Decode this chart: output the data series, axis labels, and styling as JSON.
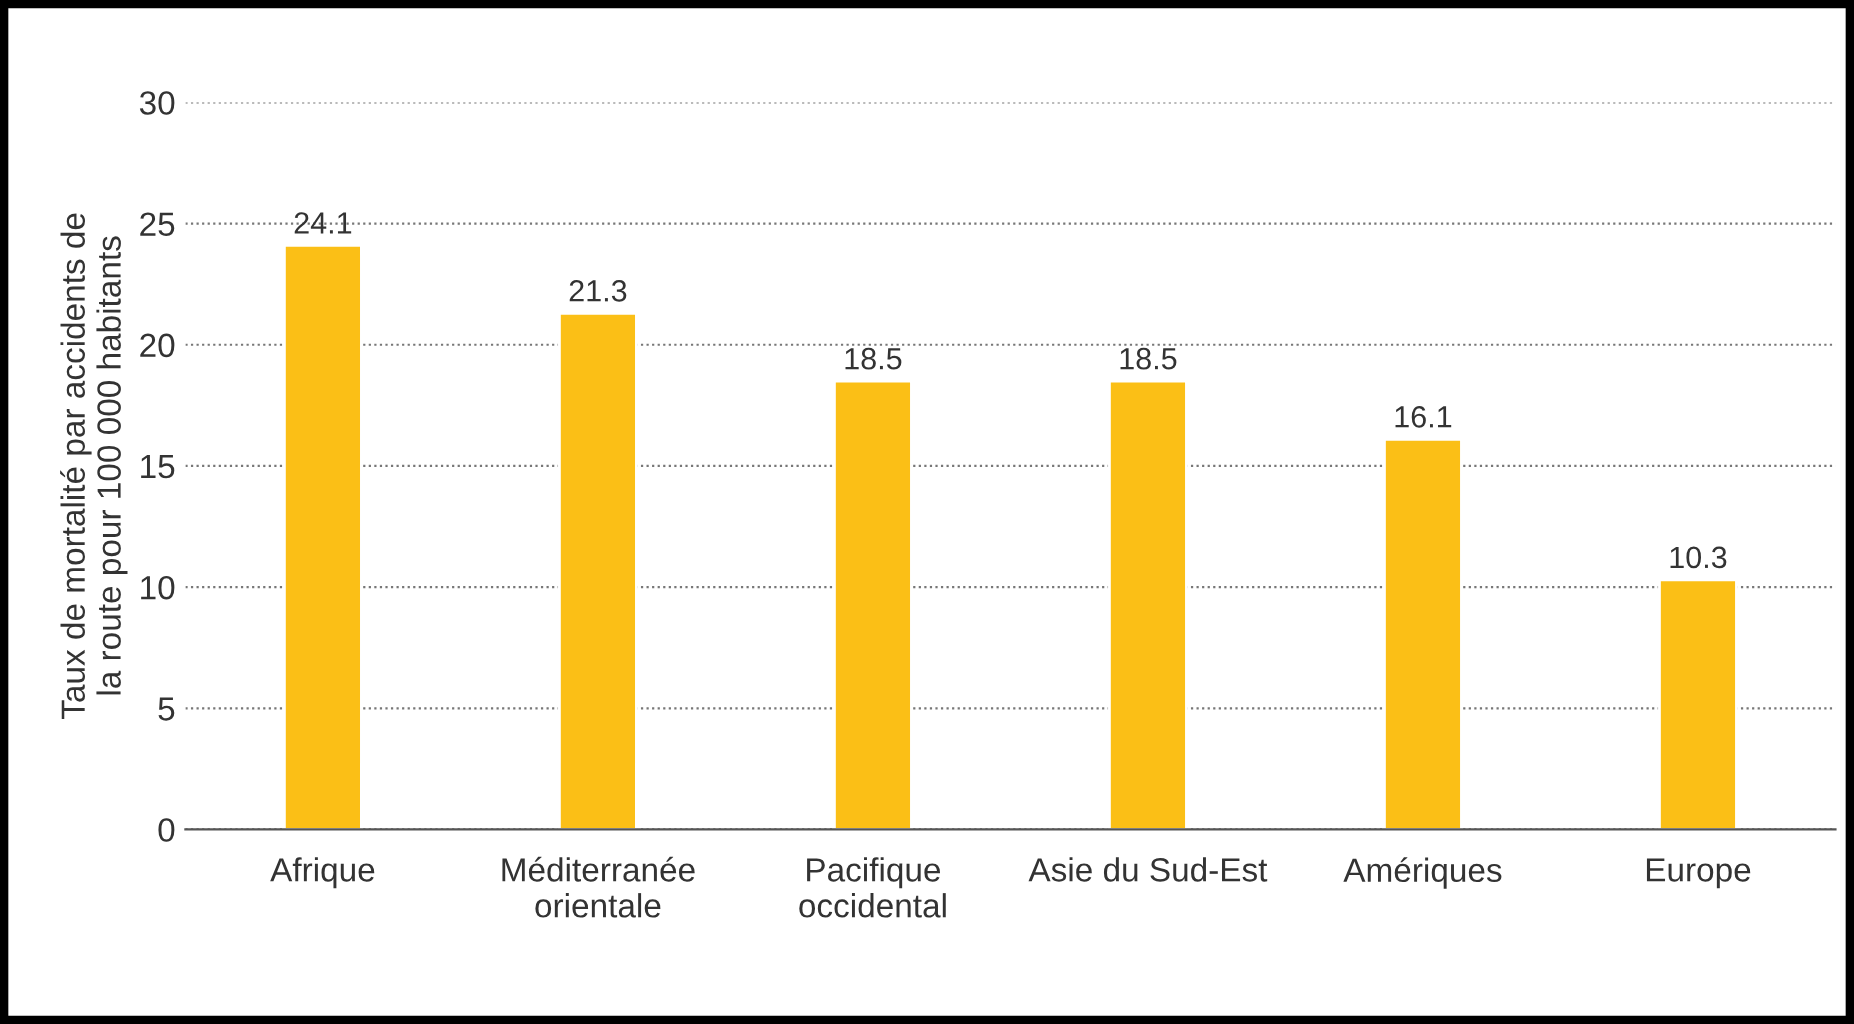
{
  "chart_data": {
    "type": "bar",
    "ylabel": "Taux de mortalité par accidents de\nla route pour 100 000 habitants",
    "categories": [
      "Afrique",
      "Méditerranée\norientale",
      "Pacifique\noccidental",
      "Asie du Sud-Est",
      "Amériques",
      "Europe"
    ],
    "values": [
      24.1,
      21.3,
      18.5,
      18.5,
      16.1,
      10.3
    ],
    "color": "#fbbf16",
    "ylim": [
      0,
      30
    ],
    "yticks": [
      0,
      5,
      10,
      15,
      20,
      25,
      30
    ],
    "grid": "y",
    "data_labels": true,
    "legend": false
  }
}
